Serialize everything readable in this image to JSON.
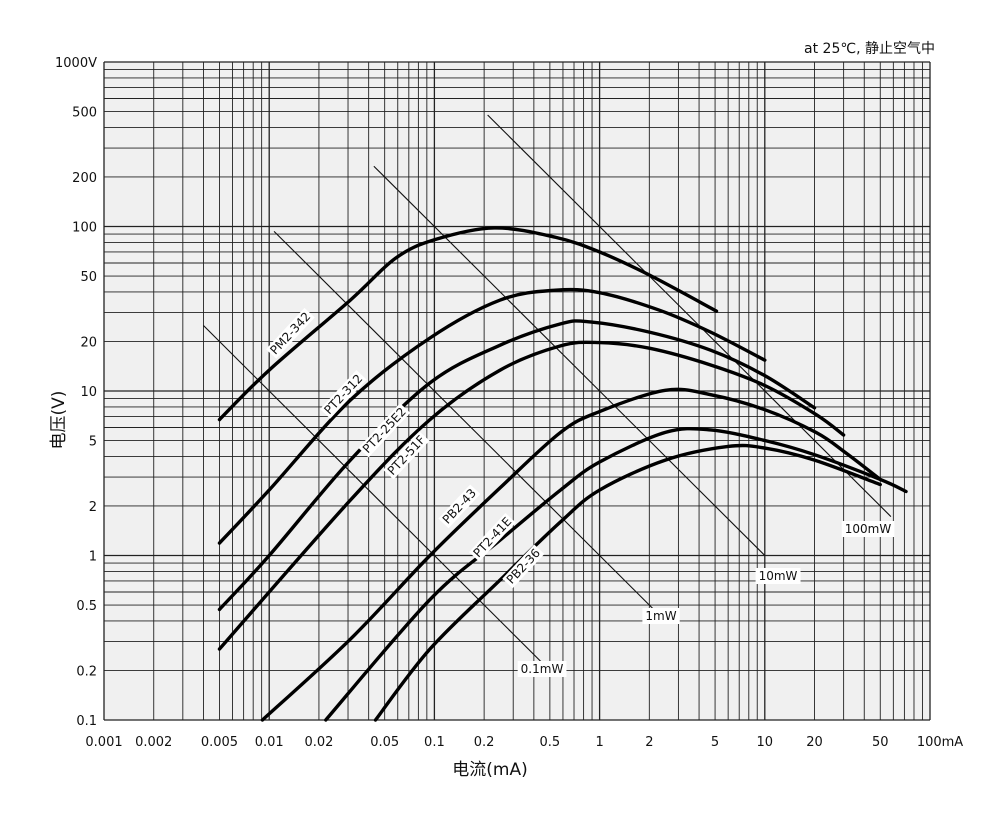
{
  "chart_data": {
    "type": "line",
    "note": "at 25℃, 静止空气中",
    "xlabel": "电流(mA)",
    "ylabel": "电压(V)",
    "xscale": "log",
    "yscale": "log",
    "xlim": [
      0.001,
      100
    ],
    "ylim": [
      0.1,
      1000
    ],
    "grid": true,
    "x_ticks": [
      {
        "v": 0.001,
        "label": "0.001"
      },
      {
        "v": 0.002,
        "label": "0.002"
      },
      {
        "v": 0.005,
        "label": "0.005"
      },
      {
        "v": 0.01,
        "label": "0.01"
      },
      {
        "v": 0.02,
        "label": "0.02"
      },
      {
        "v": 0.05,
        "label": "0.05"
      },
      {
        "v": 0.1,
        "label": "0.1"
      },
      {
        "v": 0.2,
        "label": "0.2"
      },
      {
        "v": 0.5,
        "label": "0.5"
      },
      {
        "v": 1,
        "label": "1"
      },
      {
        "v": 2,
        "label": "2"
      },
      {
        "v": 5,
        "label": "5"
      },
      {
        "v": 10,
        "label": "10"
      },
      {
        "v": 20,
        "label": "20"
      },
      {
        "v": 50,
        "label": "50"
      },
      {
        "v": 100,
        "label": "100mA"
      }
    ],
    "y_ticks": [
      {
        "v": 1000,
        "label": "1000V"
      },
      {
        "v": 500,
        "label": "500"
      },
      {
        "v": 200,
        "label": "200"
      },
      {
        "v": 100,
        "label": "100"
      },
      {
        "v": 50,
        "label": "50"
      },
      {
        "v": 20,
        "label": "20"
      },
      {
        "v": 10,
        "label": "10"
      },
      {
        "v": 5,
        "label": "5"
      },
      {
        "v": 2,
        "label": "2"
      },
      {
        "v": 1,
        "label": "1"
      },
      {
        "v": 0.5,
        "label": "0.5"
      },
      {
        "v": 0.2,
        "label": "0.2"
      },
      {
        "v": 0.1,
        "label": "0.1"
      }
    ],
    "series": [
      {
        "name": "PM2-342",
        "x": [
          0.005,
          0.01,
          0.031,
          0.058,
          0.1,
          0.23,
          0.54,
          1.0,
          2.0,
          5.1
        ],
        "y": [
          6.7,
          13.4,
          35.7,
          64,
          83,
          98,
          86,
          70,
          50.7,
          30.6
        ]
      },
      {
        "name": "PT2-312",
        "x": [
          0.005,
          0.01,
          0.031,
          0.094,
          0.25,
          0.54,
          1.0,
          2.3,
          4.7,
          10
        ],
        "y": [
          1.19,
          2.5,
          8.8,
          21,
          35.7,
          41,
          39.6,
          31,
          22.8,
          15.4
        ]
      },
      {
        "name": "PT2-25E2",
        "x": [
          0.005,
          0.01,
          0.031,
          0.094,
          0.25,
          0.58,
          0.88,
          2.0,
          4.7,
          10,
          20
        ],
        "y": [
          0.47,
          1.0,
          3.8,
          11.2,
          19,
          25.6,
          26.3,
          22.8,
          17.7,
          12.4,
          7.9
        ]
      },
      {
        "name": "PT2-51F",
        "x": [
          0.005,
          0.031,
          0.094,
          0.25,
          0.58,
          1.0,
          2.0,
          4.7,
          10,
          20.4,
          30
        ],
        "y": [
          0.27,
          2.17,
          6.7,
          13.4,
          18.8,
          19.7,
          18.2,
          14.4,
          10.8,
          7.2,
          5.4
        ]
      },
      {
        "name": "PB2-43",
        "x": [
          0.0091,
          0.031,
          0.094,
          0.25,
          0.58,
          1.0,
          2.5,
          4.7,
          10,
          20.4,
          31,
          50
        ],
        "y": [
          0.1,
          0.31,
          1.0,
          2.58,
          5.6,
          7.5,
          10.1,
          9.5,
          7.7,
          5.6,
          4.2,
          2.9
        ]
      },
      {
        "name": "PT2-41E",
        "x": [
          0.022,
          0.094,
          0.25,
          0.58,
          1.0,
          2.5,
          4.7,
          10,
          20,
          50,
          71.6
        ],
        "y": [
          0.1,
          0.54,
          1.24,
          2.5,
          3.7,
          5.6,
          5.8,
          5.0,
          4.1,
          2.9,
          2.45
        ]
      },
      {
        "name": "PB2-36",
        "x": [
          0.044,
          0.094,
          0.25,
          0.58,
          1.0,
          2.5,
          6.0,
          10,
          20,
          50
        ],
        "y": [
          0.1,
          0.27,
          0.71,
          1.6,
          2.5,
          3.8,
          4.6,
          4.5,
          3.8,
          2.7
        ]
      }
    ],
    "power_lines": [
      {
        "name": "0.1mW",
        "P": 0.1,
        "x_range": [
          0.004,
          0.5
        ]
      },
      {
        "name": "1mW",
        "P": 1,
        "x_range": [
          0.0107,
          2.2
        ]
      },
      {
        "name": "10mW",
        "P": 10,
        "x_range": [
          0.043,
          10
        ]
      },
      {
        "name": "100mW",
        "P": 100,
        "x_range": [
          0.21,
          58
        ]
      }
    ]
  }
}
